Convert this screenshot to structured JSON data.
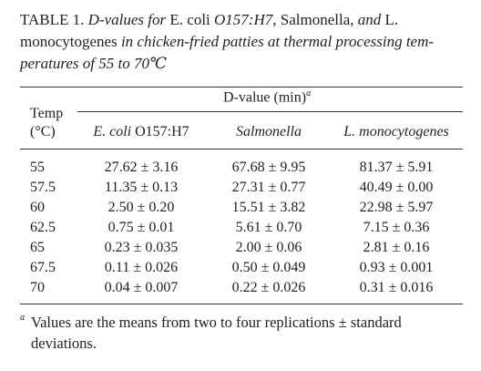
{
  "caption": {
    "lines": [
      [
        {
          "text": "TABLE 1. ",
          "italic": false
        },
        {
          "text": "D-values for ",
          "italic": true
        },
        {
          "text": "E. coli ",
          "italic": false
        },
        {
          "text": "O157:H7,",
          "italic": true
        },
        {
          "text": " Salmonella,",
          "italic": false
        },
        {
          "text": " and ",
          "italic": true
        },
        {
          "text": "L.",
          "italic": false
        }
      ],
      [
        {
          "text": "monocytogenes",
          "italic": false
        },
        {
          "text": " in chicken-fried patties at thermal processing tem-",
          "italic": true
        }
      ],
      [
        {
          "text": "peratures of 55 to 70℃",
          "italic": true
        }
      ]
    ]
  },
  "table": {
    "spanner": {
      "text": "D-value (min)",
      "note": "a"
    },
    "temp_header": [
      "Temp",
      "(°C)"
    ],
    "columns": [
      [
        {
          "text": "E. coli",
          "italic": true
        },
        {
          "text": " O157:H7",
          "italic": false
        }
      ],
      [
        {
          "text": "Salmonella",
          "italic": true
        }
      ],
      [
        {
          "text": "L. monocytogenes",
          "italic": true
        }
      ]
    ],
    "rows": [
      [
        "55",
        "27.62 ± 3.16",
        "67.68 ± 9.95",
        "81.37 ± 5.91"
      ],
      [
        "57.5",
        "11.35 ± 0.13",
        "27.31 ± 0.77",
        "40.49 ± 0.00"
      ],
      [
        "60",
        "2.50 ± 0.20",
        "15.51 ± 3.82",
        "22.98 ± 5.97"
      ],
      [
        "62.5",
        "0.75 ± 0.01",
        "5.61 ± 0.70",
        "7.15 ± 0.36"
      ],
      [
        "65",
        "0.23 ± 0.035",
        "2.00 ± 0.06",
        "2.81 ± 0.16"
      ],
      [
        "67.5",
        "0.11 ± 0.026",
        "0.50 ± 0.049",
        "0.93 ± 0.001"
      ],
      [
        "70",
        "0.04 ± 0.007",
        "0.22 ± 0.026",
        "0.31 ± 0.016"
      ]
    ]
  },
  "footnote": {
    "mark": "a",
    "lines": [
      "Values are the means from two to four replications ± standard",
      "deviations."
    ]
  }
}
